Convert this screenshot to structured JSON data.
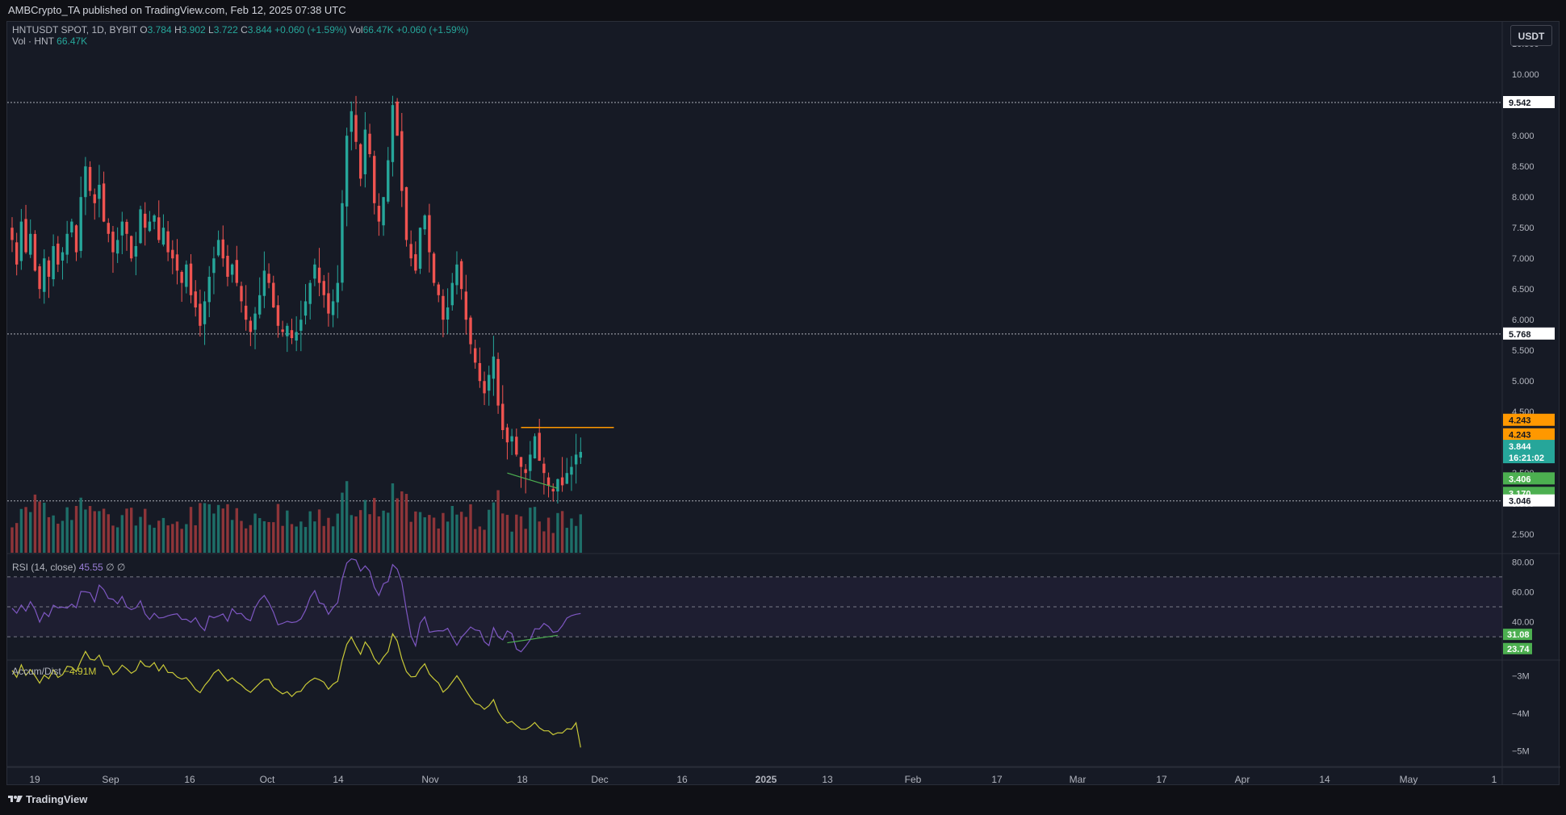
{
  "header": {
    "publisher_line": "AMBCrypto_TA published on TradingView.com, Feb 12, 2025 07:38 UTC"
  },
  "legend": {
    "symbol": "HNTUSDT SPOT, 1D, BYBIT",
    "o_label": "O",
    "o_value": "3.784",
    "h_label": "H",
    "h_value": "3.902",
    "l_label": "L",
    "l_value": "3.722",
    "c_label": "C",
    "c_value": "3.844",
    "change": "+0.060 (+1.59%)",
    "vol_label": "Vol",
    "vol_value": "66.47K",
    "vol_change": "+0.060 (+1.59%)",
    "vol_row_label": "Vol · HNT",
    "vol_row_value": "66.47K",
    "rsi_label": "RSI (14, close)",
    "rsi_value": "45.55",
    "rsi_extra": "∅ ∅",
    "ad_label": "Accum/Dist",
    "ad_value": "−4.91M"
  },
  "currency_button": "USDT",
  "footer": {
    "brand": "TradingView"
  },
  "colors": {
    "up": "#26a69a",
    "down": "#ef5350",
    "vol_up": "#1e6e68",
    "vol_down": "#8e3539",
    "rsi_line": "#7e57c2",
    "ad_line": "#c9c938",
    "resistance": "#ff9800",
    "divergence": "#4caf50"
  },
  "chart_data": {
    "type": "candlestick",
    "title": "HNTUSDT SPOT, 1D, BYBIT",
    "ylim": [
      2.2,
      10.7
    ],
    "price_ticks": [
      "2.500",
      "3.000",
      "3.500",
      "4.000",
      "4.500",
      "5.000",
      "5.500",
      "6.000",
      "6.500",
      "7.000",
      "7.500",
      "8.000",
      "8.500",
      "9.000",
      "9.500",
      "10.000",
      "10.500"
    ],
    "x_ticks": [
      "19",
      "Sep",
      "16",
      "Oct",
      "14",
      "Nov",
      "18",
      "Dec",
      "16",
      "2025",
      "13",
      "Feb",
      "17",
      "Mar",
      "17",
      "Apr",
      "14",
      "May",
      "1"
    ],
    "horizontal_levels": [
      9.542,
      5.768,
      3.046
    ],
    "resistance_level": 4.243,
    "price_labels": [
      {
        "text": "9.542",
        "kind": "level"
      },
      {
        "text": "5.768",
        "kind": "level"
      },
      {
        "text": "4.243",
        "kind": "orange"
      },
      {
        "text": "4.243",
        "kind": "orange"
      },
      {
        "text": "3.844",
        "kind": "last"
      },
      {
        "text": "16:21:02",
        "kind": "timer"
      },
      {
        "text": "3.406",
        "kind": "green"
      },
      {
        "text": "3.170",
        "kind": "green"
      },
      {
        "text": "3.046",
        "kind": "level"
      }
    ],
    "series": [
      {
        "name": "HNTUSDT",
        "close_path": [
          7.3,
          6.9,
          7.6,
          7.1,
          7.4,
          6.8,
          6.5,
          7.0,
          6.7,
          7.2,
          6.9,
          7.1,
          7.4,
          7.6,
          7.1,
          8.0,
          8.5,
          8.1,
          7.9,
          8.2,
          7.6,
          7.4,
          7.1,
          7.3,
          7.6,
          7.4,
          7.0,
          7.2,
          7.8,
          7.5,
          7.6,
          7.7,
          7.3,
          7.5,
          7.1,
          7.0,
          6.8,
          6.6,
          6.9,
          6.4,
          6.2,
          5.9,
          6.3,
          6.7,
          7.0,
          7.3,
          7.0,
          6.7,
          6.9,
          6.6,
          6.3,
          6.0,
          5.8,
          6.1,
          6.4,
          6.8,
          6.6,
          6.2,
          5.9,
          5.8,
          5.9,
          5.7,
          5.8,
          6.0,
          6.3,
          6.6,
          6.9,
          6.6,
          6.4,
          6.1,
          6.3,
          6.6,
          7.9,
          9.0,
          9.4,
          8.9,
          8.3,
          9.1,
          8.7,
          7.9,
          7.6,
          8.0,
          8.6,
          9.5,
          9.0,
          8.1,
          7.3,
          7.0,
          6.8,
          7.5,
          7.7,
          7.1,
          6.6,
          6.4,
          6.0,
          6.2,
          6.6,
          6.9,
          6.5,
          6.0,
          5.6,
          5.3,
          5.0,
          4.8,
          5.1,
          5.4,
          4.6,
          4.2,
          4.0,
          4.1,
          3.8,
          3.6,
          3.5,
          3.8,
          4.1,
          3.7,
          3.5,
          3.3,
          3.2,
          3.4,
          3.3,
          3.5,
          3.6,
          3.8,
          3.844
        ]
      },
      {
        "name": "Vol"
      },
      {
        "name": "RSI (14, close)",
        "y_ticks": [
          "80.00",
          "60.00",
          "40.00"
        ],
        "labels": [
          "31.08",
          "23.74"
        ],
        "bands": [
          70,
          50,
          30
        ],
        "last": 45.55
      },
      {
        "name": "Accum/Dist",
        "y_ticks": [
          "−3M",
          "−4M",
          "−5M"
        ],
        "last": -4.91
      }
    ]
  }
}
